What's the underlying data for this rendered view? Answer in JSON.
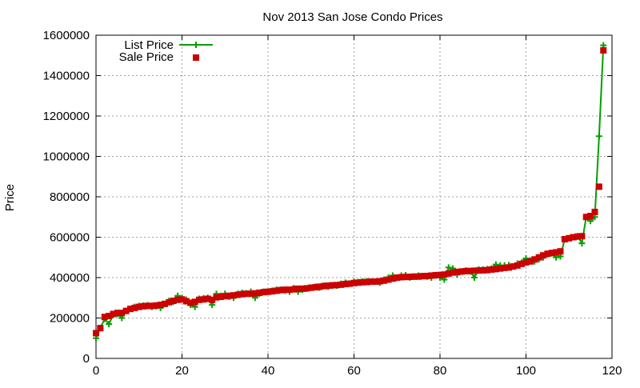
{
  "chart_data": {
    "type": "line",
    "title": "Nov 2013 San Jose Condo Prices",
    "xlabel": "",
    "ylabel": "Price",
    "xlim": [
      0,
      120
    ],
    "ylim": [
      0,
      1600000
    ],
    "x_ticks": [
      0,
      20,
      40,
      60,
      80,
      100,
      120
    ],
    "y_ticks": [
      0,
      200000,
      400000,
      600000,
      800000,
      1000000,
      1200000,
      1400000,
      1600000
    ],
    "grid": true,
    "legend_position": "top-left",
    "series": [
      {
        "name": "List Price",
        "style": "line-points",
        "marker": "plus",
        "color": "#00a000",
        "x": [
          0,
          1,
          2,
          3,
          4,
          5,
          6,
          7,
          8,
          9,
          10,
          11,
          12,
          13,
          14,
          15,
          16,
          17,
          18,
          19,
          20,
          21,
          22,
          23,
          24,
          25,
          26,
          27,
          28,
          29,
          30,
          31,
          32,
          33,
          34,
          35,
          36,
          37,
          38,
          39,
          40,
          41,
          42,
          43,
          44,
          45,
          46,
          47,
          48,
          49,
          50,
          51,
          52,
          53,
          54,
          55,
          56,
          57,
          58,
          59,
          60,
          61,
          62,
          63,
          64,
          65,
          66,
          67,
          68,
          69,
          70,
          71,
          72,
          73,
          74,
          75,
          76,
          77,
          78,
          79,
          80,
          81,
          82,
          83,
          84,
          85,
          86,
          87,
          88,
          89,
          90,
          91,
          92,
          93,
          94,
          95,
          96,
          97,
          98,
          99,
          100,
          101,
          102,
          103,
          104,
          105,
          106,
          107,
          108,
          109,
          110,
          111,
          112,
          113,
          114,
          115,
          116,
          117,
          118
        ],
        "values": [
          100000,
          150000,
          195000,
          170000,
          215000,
          220000,
          200000,
          235000,
          245000,
          255000,
          260000,
          262000,
          263000,
          255000,
          258000,
          250000,
          270000,
          285000,
          280000,
          310000,
          300000,
          290000,
          265000,
          255000,
          295000,
          298000,
          300000,
          265000,
          320000,
          310000,
          320000,
          305000,
          300000,
          320000,
          325000,
          322000,
          330000,
          300000,
          320000,
          330000,
          330000,
          335000,
          340000,
          340000,
          335000,
          330000,
          348000,
          330000,
          340000,
          345000,
          350000,
          355000,
          350000,
          360000,
          355000,
          360000,
          360000,
          370000,
          375000,
          370000,
          380000,
          378000,
          380000,
          382000,
          380000,
          380000,
          375000,
          390000,
          400000,
          410000,
          398000,
          410000,
          412000,
          400000,
          405000,
          410000,
          408000,
          405000,
          400000,
          410000,
          400000,
          390000,
          450000,
          445000,
          415000,
          430000,
          435000,
          430000,
          400000,
          440000,
          440000,
          442000,
          445000,
          465000,
          460000,
          460000,
          462000,
          455000,
          470000,
          475000,
          495000,
          485000,
          480000,
          490000,
          500000,
          515000,
          520000,
          500000,
          505000,
          590000,
          595000,
          600000,
          605000,
          570000,
          700000,
          680000,
          700000,
          1100000,
          1550000
        ]
      },
      {
        "name": "Sale Price",
        "style": "points",
        "marker": "square",
        "color": "#cc0000",
        "x": [
          0,
          1,
          2,
          3,
          4,
          5,
          6,
          7,
          8,
          9,
          10,
          11,
          12,
          13,
          14,
          15,
          16,
          17,
          18,
          19,
          20,
          21,
          22,
          23,
          24,
          25,
          26,
          27,
          28,
          29,
          30,
          31,
          32,
          33,
          34,
          35,
          36,
          37,
          38,
          39,
          40,
          41,
          42,
          43,
          44,
          45,
          46,
          47,
          48,
          49,
          50,
          51,
          52,
          53,
          54,
          55,
          56,
          57,
          58,
          59,
          60,
          61,
          62,
          63,
          64,
          65,
          66,
          67,
          68,
          69,
          70,
          71,
          72,
          73,
          74,
          75,
          76,
          77,
          78,
          79,
          80,
          81,
          82,
          83,
          84,
          85,
          86,
          87,
          88,
          89,
          90,
          91,
          92,
          93,
          94,
          95,
          96,
          97,
          98,
          99,
          100,
          101,
          102,
          103,
          104,
          105,
          106,
          107,
          108,
          109,
          110,
          111,
          112,
          113,
          114,
          115,
          116,
          117,
          118
        ],
        "values": [
          125000,
          150000,
          205000,
          210000,
          220000,
          225000,
          225000,
          235000,
          245000,
          250000,
          255000,
          258000,
          260000,
          260000,
          262000,
          265000,
          270000,
          278000,
          285000,
          290000,
          292000,
          283000,
          275000,
          280000,
          290000,
          292000,
          295000,
          290000,
          302000,
          305000,
          308000,
          310000,
          312000,
          315000,
          318000,
          320000,
          320000,
          322000,
          325000,
          328000,
          330000,
          332000,
          335000,
          338000,
          340000,
          340000,
          342000,
          345000,
          345000,
          347000,
          350000,
          352000,
          355000,
          358000,
          360000,
          362000,
          363000,
          365000,
          368000,
          370000,
          373000,
          375000,
          377000,
          378000,
          380000,
          380000,
          382000,
          385000,
          390000,
          395000,
          400000,
          402000,
          403000,
          404000,
          405000,
          405000,
          407000,
          408000,
          410000,
          412000,
          413000,
          415000,
          420000,
          425000,
          428000,
          430000,
          432000,
          433000,
          434000,
          435000,
          436000,
          437000,
          440000,
          442000,
          445000,
          448000,
          450000,
          455000,
          460000,
          468000,
          475000,
          480000,
          490000,
          500000,
          510000,
          518000,
          522000,
          525000,
          530000,
          590000,
          595000,
          600000,
          603000,
          605000,
          700000,
          705000,
          725000,
          850000,
          1525000
        ]
      }
    ]
  }
}
